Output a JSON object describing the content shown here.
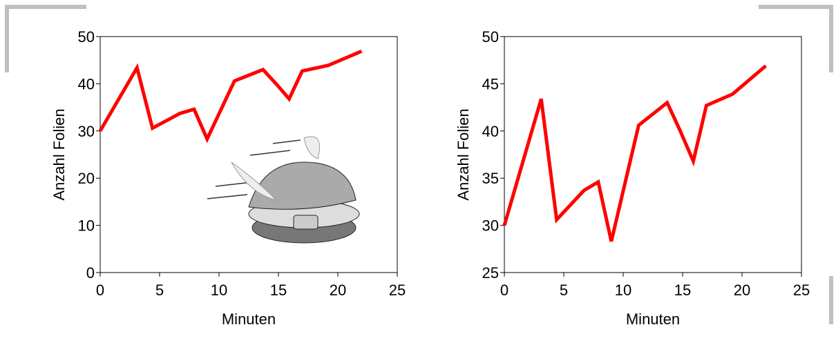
{
  "chart_data": [
    {
      "type": "line",
      "x_label": "Minuten",
      "y_label": "Anzahl Folien",
      "series": [
        {
          "color": "#ff0000",
          "x": [
            0,
            3.1,
            4.4,
            6.7,
            7.9,
            9.0,
            11.3,
            13.7,
            14.8,
            15.9,
            17.0,
            19.2,
            22.0
          ],
          "values": [
            30.0,
            43.4,
            30.6,
            33.7,
            34.6,
            28.3,
            40.6,
            43.0,
            40.0,
            36.8,
            42.7,
            43.9,
            46.9
          ]
        }
      ],
      "xlim": [
        0,
        25
      ],
      "xticks": [
        0,
        5,
        10,
        15,
        20,
        25
      ],
      "ylim": [
        0,
        50
      ],
      "yticks": [
        0,
        10,
        20,
        30,
        40,
        50
      ]
    },
    {
      "type": "line",
      "x_label": "Minuten",
      "y_label": "Anzahl Folien",
      "series": [
        {
          "color": "#ff0000",
          "x": [
            0,
            3.1,
            4.4,
            6.7,
            7.9,
            9.0,
            11.3,
            13.7,
            14.8,
            15.9,
            17.0,
            19.2,
            22.0
          ],
          "values": [
            30.0,
            43.4,
            30.6,
            33.7,
            34.6,
            28.3,
            40.6,
            43.0,
            40.0,
            36.8,
            42.7,
            43.9,
            46.9
          ]
        }
      ],
      "xlim": [
        0,
        25
      ],
      "xticks": [
        0,
        5,
        10,
        15,
        20,
        25
      ],
      "ylim": [
        25,
        50
      ],
      "yticks": [
        25,
        30,
        35,
        40,
        45,
        50
      ]
    }
  ]
}
